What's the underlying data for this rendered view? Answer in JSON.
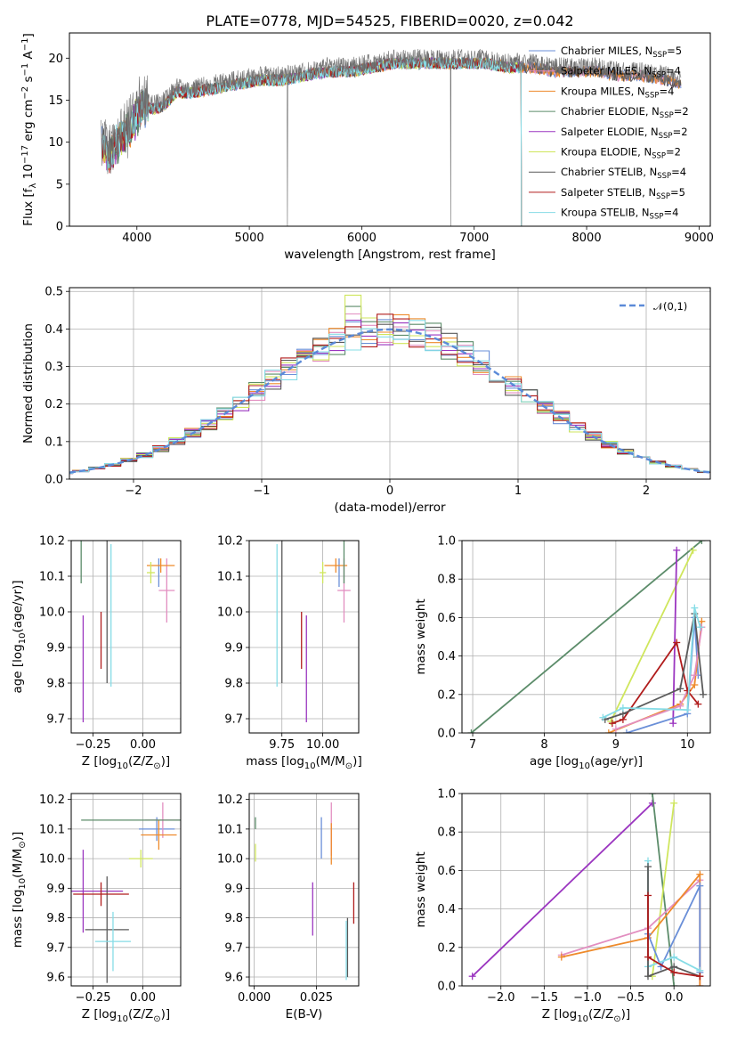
{
  "figure": {
    "title": "PLATE=0778, MJD=54525, FIBERID=0020, z=0.042"
  },
  "series_colors": {
    "Chabrier MILES": "#6a8fd8",
    "Salpeter MILES": "#e28ec0",
    "Kroupa MILES": "#ee8a2b",
    "Chabrier ELODIE": "#5c8c6a",
    "Salpeter ELODIE": "#9b36c0",
    "Kroupa ELODIE": "#cfe65c",
    "Chabrier STELIB": "#5a5a5a",
    "Salpeter STELIB": "#b01c1c",
    "Kroupa STELIB": "#86dce6"
  },
  "chart_data": [
    {
      "id": "spectrum",
      "type": "line",
      "title": "PLATE=0778, MJD=54525, FIBERID=0020, z=0.042",
      "xlabel": "wavelength [Angstrom, rest frame]",
      "ylabel": "Flux [f_λ 10^-17 erg cm^-2 s^-1 A^-1]",
      "xlim": [
        3400,
        9100
      ],
      "ylim": [
        0,
        23
      ],
      "xticks": [
        4000,
        5000,
        6000,
        7000,
        8000,
        9000
      ],
      "yticks": [
        0,
        5,
        10,
        15,
        20
      ],
      "grid": false,
      "legend_position": "top-right",
      "legend": [
        {
          "label": "Chabrier MILES, N",
          "sub": "SSP",
          "tail": "=5",
          "color": "#6a8fd8"
        },
        {
          "label": "Salpeter MILES, N",
          "sub": "SSP",
          "tail": "=4",
          "color": "#e28ec0"
        },
        {
          "label": "Kroupa MILES, N",
          "sub": "SSP",
          "tail": "=4",
          "color": "#ee8a2b"
        },
        {
          "label": "Chabrier ELODIE, N",
          "sub": "SSP",
          "tail": "=2",
          "color": "#5c8c6a"
        },
        {
          "label": "Salpeter ELODIE, N",
          "sub": "SSP",
          "tail": "=2",
          "color": "#9b36c0"
        },
        {
          "label": "Kroupa ELODIE, N",
          "sub": "SSP",
          "tail": "=2",
          "color": "#cfe65c"
        },
        {
          "label": "Chabrier STELIB, N",
          "sub": "SSP",
          "tail": "=4",
          "color": "#5a5a5a"
        },
        {
          "label": "Salpeter STELIB, N",
          "sub": "SSP",
          "tail": "=5",
          "color": "#b01c1c"
        },
        {
          "label": "Kroupa STELIB, N",
          "sub": "SSP",
          "tail": "=4",
          "color": "#86dce6"
        }
      ],
      "data_envelope": {
        "x": [
          3680,
          3750,
          3850,
          3950,
          4050,
          4150,
          4250,
          4350,
          4500,
          4700,
          4900,
          5100,
          5300,
          5500,
          5700,
          5900,
          6100,
          6300,
          6500,
          6700,
          6900,
          7100,
          7300,
          7500,
          7700,
          7900,
          8100,
          8300,
          8500,
          8700,
          8840
        ],
        "y": [
          10.5,
          9.0,
          11.0,
          12.5,
          15.0,
          14.5,
          15.0,
          16.5,
          16.5,
          17.0,
          17.5,
          18.0,
          18.0,
          18.5,
          19.0,
          19.0,
          19.5,
          20.0,
          20.0,
          20.0,
          20.0,
          20.0,
          19.5,
          19.5,
          19.0,
          19.0,
          19.0,
          18.5,
          18.5,
          18.0,
          17.5
        ]
      },
      "data_cuts": [
        {
          "x": 5340,
          "note": "single-pixel drop to 0"
        },
        {
          "x": 6790,
          "note": "single-pixel drop to 0"
        },
        {
          "x": 7420,
          "note": "model cutoff to 0"
        }
      ]
    },
    {
      "id": "residual_histogram",
      "type": "line",
      "xlabel": "(data-model)/error",
      "ylabel": "Normed distribution",
      "xlim": [
        -2.5,
        2.5
      ],
      "ylim": [
        0,
        0.51
      ],
      "xticks": [
        -2,
        -1,
        0,
        1,
        2
      ],
      "yticks": [
        0.0,
        0.1,
        0.2,
        0.3,
        0.4,
        0.5
      ],
      "grid": true,
      "legend_position": "top-right",
      "legend": [
        {
          "label": "N(0,1)",
          "color": "#5b8ad8",
          "style": "dashed"
        }
      ],
      "bin_width": 0.125,
      "reference_curve": "N(0,1)",
      "peak_values": {
        "Kroupa ELODIE": 0.49,
        "Chabrier ELODIE": 0.46,
        "Salpeter MILES": 0.44
      }
    },
    {
      "id": "age_vs_Z",
      "type": "scatter",
      "xlabel": "Z [log10(Z/Z⊙)]",
      "ylabel": "age [log10(age/yr)]",
      "xlim": [
        -0.36,
        0.19
      ],
      "ylim": [
        9.66,
        10.2
      ],
      "xticks": [
        -0.25,
        0.0
      ],
      "yticks": [
        9.7,
        9.8,
        9.9,
        10.0,
        10.1,
        10.2
      ],
      "grid": true,
      "points": [
        {
          "series": "Chabrier MILES",
          "x": 0.08,
          "y": 10.11,
          "xerr": 0.0,
          "yerr": 0.04
        },
        {
          "series": "Salpeter MILES",
          "x": 0.12,
          "y": 10.06,
          "xerr": 0.04,
          "yerr": 0.09
        },
        {
          "series": "Kroupa MILES",
          "x": 0.09,
          "y": 10.13,
          "xerr": 0.07,
          "yerr": 0.02
        },
        {
          "series": "Chabrier ELODIE",
          "x": -0.31,
          "y": 10.18,
          "xerr": 0.0,
          "yerr": 0.1
        },
        {
          "series": "Salpeter ELODIE",
          "x": -0.3,
          "y": 9.84,
          "xerr": 0.0,
          "yerr": 0.15
        },
        {
          "series": "Kroupa ELODIE",
          "x": 0.04,
          "y": 10.11,
          "xerr": 0.02,
          "yerr": 0.03
        },
        {
          "series": "Chabrier STELIB",
          "x": -0.18,
          "y": 10.06,
          "xerr": 0.0,
          "yerr": 0.26
        },
        {
          "series": "Salpeter STELIB",
          "x": -0.21,
          "y": 9.92,
          "xerr": 0.0,
          "yerr": 0.08
        },
        {
          "series": "Kroupa STELIB",
          "x": -0.16,
          "y": 9.99,
          "xerr": 0.0,
          "yerr": 0.2
        }
      ]
    },
    {
      "id": "age_vs_mass",
      "type": "scatter",
      "xlabel": "mass [log10(M/M⊙)]",
      "ylabel": "",
      "xlim": [
        9.55,
        10.22
      ],
      "ylim": [
        9.66,
        10.2
      ],
      "xticks": [
        9.75,
        10.0
      ],
      "yticks": [
        9.7,
        9.8,
        9.9,
        10.0,
        10.1,
        10.2
      ],
      "grid": true,
      "points": [
        {
          "series": "Chabrier MILES",
          "x": 10.1,
          "y": 10.11,
          "xerr": 0.0,
          "yerr": 0.04
        },
        {
          "series": "Salpeter MILES",
          "x": 10.13,
          "y": 10.06,
          "xerr": 0.04,
          "yerr": 0.09
        },
        {
          "series": "Kroupa MILES",
          "x": 10.08,
          "y": 10.13,
          "xerr": 0.07,
          "yerr": 0.02
        },
        {
          "series": "Chabrier ELODIE",
          "x": 10.13,
          "y": 10.18,
          "xerr": 0.0,
          "yerr": 0.1
        },
        {
          "series": "Salpeter ELODIE",
          "x": 9.9,
          "y": 9.84,
          "xerr": 0.0,
          "yerr": 0.15
        },
        {
          "series": "Kroupa ELODIE",
          "x": 10.0,
          "y": 10.11,
          "xerr": 0.02,
          "yerr": 0.03
        },
        {
          "series": "Chabrier STELIB",
          "x": 9.75,
          "y": 10.06,
          "xerr": 0.0,
          "yerr": 0.26
        },
        {
          "series": "Salpeter STELIB",
          "x": 9.87,
          "y": 9.92,
          "xerr": 0.0,
          "yerr": 0.08
        },
        {
          "series": "Kroupa STELIB",
          "x": 9.72,
          "y": 9.99,
          "xerr": 0.0,
          "yerr": 0.2
        }
      ]
    },
    {
      "id": "mass_weight_vs_age",
      "type": "line",
      "xlabel": "age [log10(age/yr)]",
      "ylabel": "mass weight",
      "xlim": [
        6.85,
        10.32
      ],
      "ylim": [
        0,
        1.0
      ],
      "xticks": [
        7,
        8,
        9,
        10
      ],
      "yticks": [
        0.0,
        0.2,
        0.4,
        0.6,
        0.8,
        1.0
      ],
      "grid": true,
      "series": [
        {
          "name": "Chabrier ELODIE",
          "x": [
            6.98,
            10.2
          ],
          "y": [
            0.0,
            1.0
          ]
        },
        {
          "name": "Kroupa ELODIE",
          "x": [
            8.93,
            10.08
          ],
          "y": [
            0.06,
            0.95
          ]
        },
        {
          "name": "Salpeter ELODIE",
          "x": [
            9.8,
            9.85
          ],
          "y": [
            0.05,
            0.95
          ]
        },
        {
          "name": "Chabrier MILES",
          "x": [
            9.15,
            10.0,
            10.1,
            10.15
          ],
          "y": [
            0.0,
            0.1,
            0.6,
            0.3
          ]
        },
        {
          "name": "Kroupa MILES",
          "x": [
            8.9,
            9.9,
            10.1,
            10.2
          ],
          "y": [
            0.0,
            0.15,
            0.25,
            0.58
          ]
        },
        {
          "name": "Salpeter MILES",
          "x": [
            9.0,
            9.9,
            10.1,
            10.2
          ],
          "y": [
            0.02,
            0.14,
            0.3,
            0.55
          ]
        },
        {
          "name": "Salpeter STELIB",
          "x": [
            8.95,
            9.1,
            9.85,
            10.0,
            10.15
          ],
          "y": [
            0.05,
            0.07,
            0.47,
            0.22,
            0.15
          ]
        },
        {
          "name": "Chabrier STELIB",
          "x": [
            8.85,
            9.1,
            9.9,
            10.1,
            10.22
          ],
          "y": [
            0.07,
            0.1,
            0.23,
            0.62,
            0.2
          ]
        },
        {
          "name": "Kroupa STELIB",
          "x": [
            8.82,
            9.1,
            10.0,
            10.1,
            10.18
          ],
          "y": [
            0.08,
            0.13,
            0.12,
            0.65,
            0.55
          ]
        }
      ]
    },
    {
      "id": "mass_vs_Z",
      "type": "scatter",
      "xlabel": "Z [log10(Z/Z⊙)]",
      "ylabel": "mass [log10(M/M⊙)]",
      "xlim": [
        -0.36,
        0.19
      ],
      "ylim": [
        9.57,
        10.22
      ],
      "xticks": [
        -0.25,
        0.0
      ],
      "yticks": [
        9.6,
        9.7,
        9.8,
        9.9,
        10.0,
        10.1,
        10.2
      ],
      "grid": true,
      "points": [
        {
          "series": "Chabrier MILES",
          "x": 0.07,
          "y": 10.1,
          "xerr": 0.09,
          "yerr": 0.04
        },
        {
          "series": "Salpeter MILES",
          "x": 0.1,
          "y": 10.13,
          "xerr": 0.09,
          "yerr": 0.06
        },
        {
          "series": "Kroupa MILES",
          "x": 0.08,
          "y": 10.08,
          "xerr": 0.09,
          "yerr": 0.05
        },
        {
          "series": "Chabrier ELODIE",
          "x": -0.06,
          "y": 10.13,
          "xerr": 0.25,
          "yerr": 0.0
        },
        {
          "series": "Salpeter ELODIE",
          "x": -0.3,
          "y": 9.89,
          "xerr": 0.2,
          "yerr": 0.14
        },
        {
          "series": "Kroupa ELODIE",
          "x": -0.01,
          "y": 10.0,
          "xerr": 0.06,
          "yerr": 0.03
        },
        {
          "series": "Chabrier STELIB",
          "x": -0.18,
          "y": 9.76,
          "xerr": 0.11,
          "yerr": 0.18
        },
        {
          "series": "Salpeter STELIB",
          "x": -0.21,
          "y": 9.88,
          "xerr": 0.14,
          "yerr": 0.04
        },
        {
          "series": "Kroupa STELIB",
          "x": -0.15,
          "y": 9.72,
          "xerr": 0.09,
          "yerr": 0.1
        }
      ]
    },
    {
      "id": "mass_vs_ebv",
      "type": "scatter",
      "xlabel": "E(B-V)",
      "ylabel": "",
      "xlim": [
        -0.002,
        0.042
      ],
      "ylim": [
        9.57,
        10.22
      ],
      "xticks": [
        0.0,
        0.025
      ],
      "yticks": [
        9.6,
        9.7,
        9.8,
        9.9,
        10.0,
        10.1,
        10.2
      ],
      "grid": true,
      "points": [
        {
          "series": "Chabrier MILES",
          "x": 0.027,
          "y": 10.07,
          "xerr": 0.0,
          "yerr": 0.07
        },
        {
          "series": "Salpeter MILES",
          "x": 0.031,
          "y": 10.1,
          "xerr": 0.0,
          "yerr": 0.09
        },
        {
          "series": "Kroupa MILES",
          "x": 0.031,
          "y": 10.05,
          "xerr": 0.0,
          "yerr": 0.07
        },
        {
          "series": "Chabrier ELODIE",
          "x": 0.0005,
          "y": 10.12,
          "xerr": 0.0,
          "yerr": 0.02
        },
        {
          "series": "Salpeter ELODIE",
          "x": 0.0235,
          "y": 9.83,
          "xerr": 0.0,
          "yerr": 0.09
        },
        {
          "series": "Kroupa ELODIE",
          "x": 0.0005,
          "y": 10.02,
          "xerr": 0.0,
          "yerr": 0.03
        },
        {
          "series": "Chabrier STELIB",
          "x": 0.0375,
          "y": 9.7,
          "xerr": 0.0,
          "yerr": 0.1
        },
        {
          "series": "Salpeter STELIB",
          "x": 0.04,
          "y": 9.85,
          "xerr": 0.0,
          "yerr": 0.07
        },
        {
          "series": "Kroupa STELIB",
          "x": 0.037,
          "y": 9.69,
          "xerr": 0.0,
          "yerr": 0.1
        }
      ]
    },
    {
      "id": "mass_weight_vs_Z",
      "type": "line",
      "xlabel": "Z [log10(Z/Z⊙)]",
      "ylabel": "mass weight",
      "xlim": [
        -2.45,
        0.42
      ],
      "ylim": [
        0,
        1.0
      ],
      "xticks": [
        -2.0,
        -1.5,
        -1.0,
        -0.5,
        0.0
      ],
      "yticks": [
        0.0,
        0.2,
        0.4,
        0.6,
        0.8,
        1.0
      ],
      "grid": true,
      "series": [
        {
          "name": "Salpeter ELODIE",
          "x": [
            -2.33,
            -0.25
          ],
          "y": [
            0.05,
            0.95
          ]
        },
        {
          "name": "Chabrier ELODIE",
          "x": [
            -0.25,
            0.0
          ],
          "y": [
            1.0,
            0.0
          ]
        },
        {
          "name": "Kroupa ELODIE",
          "x": [
            -0.25,
            0.0
          ],
          "y": [
            0.05,
            0.95
          ]
        },
        {
          "name": "Salpeter MILES",
          "x": [
            -1.3,
            -0.3,
            0.3,
            0.3
          ],
          "y": [
            0.16,
            0.3,
            0.55,
            0.0
          ]
        },
        {
          "name": "Kroupa MILES",
          "x": [
            -1.3,
            -0.3,
            0.3,
            0.3
          ],
          "y": [
            0.15,
            0.25,
            0.58,
            0.0
          ]
        },
        {
          "name": "Chabrier MILES",
          "x": [
            -0.3,
            -0.15,
            0.3,
            0.3
          ],
          "y": [
            0.27,
            0.1,
            0.52,
            0.07
          ]
        },
        {
          "name": "Kroupa STELIB",
          "x": [
            -0.3,
            -0.3,
            0.0,
            0.3
          ],
          "y": [
            0.65,
            0.1,
            0.15,
            0.08
          ]
        },
        {
          "name": "Chabrier STELIB",
          "x": [
            -0.3,
            -0.3,
            0.0,
            0.3
          ],
          "y": [
            0.62,
            0.05,
            0.1,
            0.05
          ]
        },
        {
          "name": "Salpeter STELIB",
          "x": [
            -0.3,
            -0.3,
            0.0,
            0.3
          ],
          "y": [
            0.47,
            0.15,
            0.07,
            0.05
          ]
        }
      ]
    }
  ]
}
